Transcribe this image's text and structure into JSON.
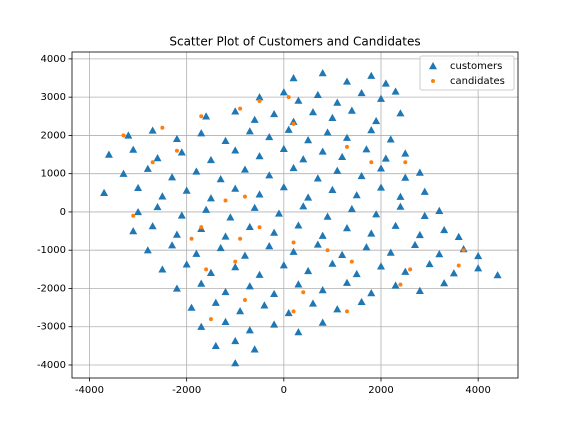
{
  "chart_data": {
    "type": "scatter",
    "title": "Scatter Plot of Customers and Candidates",
    "xlim": [
      -4360,
      4820
    ],
    "ylim": [
      -4340,
      4180
    ],
    "xticks": [
      -4000,
      -2000,
      0,
      2000,
      4000
    ],
    "yticks": [
      -4000,
      -3000,
      -2000,
      -1000,
      0,
      1000,
      2000,
      3000,
      4000
    ],
    "grid": true,
    "legend": "upper right",
    "series": [
      {
        "name": "customers",
        "color": "#1f77b4",
        "marker": "triangle",
        "x": [
          200,
          800,
          1300,
          1800,
          2100,
          -500,
          0,
          300,
          700,
          1100,
          1600,
          2000,
          2300,
          -1600,
          -1000,
          -600,
          -200,
          200,
          600,
          1000,
          1400,
          1900,
          2400,
          -3200,
          -2700,
          -2200,
          -1700,
          -1200,
          -700,
          -300,
          100,
          500,
          900,
          1300,
          1800,
          2200,
          -3600,
          -3100,
          -2600,
          -2100,
          -1500,
          -1000,
          -500,
          0,
          400,
          800,
          1200,
          1700,
          2100,
          2500,
          -3300,
          -2800,
          -2300,
          -1800,
          -1300,
          -800,
          -300,
          200,
          700,
          1100,
          1600,
          2000,
          2500,
          2800,
          -3700,
          -3000,
          -2500,
          -2000,
          -1500,
          -1000,
          -500,
          0,
          500,
          1000,
          1500,
          2000,
          2400,
          2900,
          -3000,
          -2600,
          -2100,
          -1600,
          -1100,
          -600,
          -100,
          400,
          900,
          1400,
          1900,
          2400,
          2900,
          3200,
          -3100,
          -2700,
          -2200,
          -1700,
          -1200,
          -700,
          -200,
          300,
          800,
          1300,
          1800,
          2300,
          2800,
          3300,
          3600,
          -2800,
          -2300,
          -1800,
          -1300,
          -800,
          -300,
          200,
          700,
          1200,
          1700,
          2200,
          2700,
          3200,
          3700,
          4000,
          -2500,
          -2000,
          -1500,
          -1000,
          -500,
          0,
          500,
          1000,
          1500,
          2000,
          2500,
          3000,
          3500,
          4000,
          4400,
          -2200,
          -1700,
          -1200,
          -700,
          -200,
          300,
          800,
          1300,
          1800,
          2300,
          2800,
          3300,
          -1900,
          -1400,
          -900,
          -400,
          100,
          600,
          1100,
          1600,
          -1700,
          -1200,
          -700,
          -200,
          300,
          800,
          -1400,
          -1000,
          -600,
          -1000
        ],
        "values": [
          3500,
          3630,
          3410,
          3560,
          3360,
          3000,
          3130,
          2910,
          3060,
          2860,
          3110,
          2960,
          3150,
          2500,
          2630,
          2410,
          2560,
          2360,
          2610,
          2460,
          2650,
          2380,
          2580,
          2000,
          2130,
          1910,
          2060,
          1860,
          2110,
          1960,
          2150,
          1880,
          2080,
          1940,
          2140,
          1900,
          1500,
          1630,
          1410,
          1560,
          1360,
          1610,
          1460,
          1650,
          1380,
          1580,
          1440,
          1640,
          1400,
          1530,
          1000,
          1130,
          910,
          1060,
          860,
          1110,
          960,
          1150,
          880,
          1080,
          940,
          1140,
          900,
          1030,
          500,
          630,
          410,
          560,
          360,
          610,
          460,
          650,
          380,
          580,
          440,
          640,
          400,
          530,
          0,
          130,
          -90,
          60,
          -140,
          110,
          -40,
          150,
          -120,
          80,
          -60,
          140,
          -100,
          30,
          -500,
          -370,
          -590,
          -440,
          -640,
          -390,
          -540,
          -350,
          -620,
          -420,
          -560,
          -360,
          -600,
          -470,
          -650,
          -1000,
          -870,
          -1090,
          -940,
          -1140,
          -890,
          -1040,
          -850,
          -1120,
          -920,
          -1060,
          -860,
          -1100,
          -970,
          -1150,
          -1500,
          -1370,
          -1590,
          -1440,
          -1640,
          -1390,
          -1540,
          -1350,
          -1620,
          -1420,
          -1560,
          -1360,
          -1600,
          -1470,
          -1650,
          -2000,
          -1870,
          -2090,
          -1940,
          -2140,
          -1890,
          -2040,
          -1850,
          -2120,
          -1920,
          -2060,
          -1860,
          -2500,
          -2370,
          -2590,
          -2440,
          -2640,
          -2390,
          -2540,
          -2350,
          -3000,
          -2870,
          -3090,
          -2940,
          -3140,
          -2890,
          -3500,
          -3370,
          -3590,
          -3950
        ]
      },
      {
        "name": "candidates",
        "color": "#ff7f0e",
        "marker": "circle",
        "x": [
          -3300,
          -2500,
          -2700,
          -2200,
          -1700,
          -900,
          -500,
          200,
          100,
          1300,
          1800,
          2500,
          -1200,
          -800,
          -1700,
          -3100,
          -1900,
          -900,
          -500,
          200,
          900,
          1400,
          2600,
          -1600,
          -1000,
          -800,
          400,
          1300,
          2400,
          3700,
          3600,
          200,
          -1500
        ],
        "values": [
          2000,
          2200,
          1300,
          1600,
          2500,
          2700,
          2900,
          2300,
          3000,
          1700,
          1300,
          1300,
          300,
          400,
          -400,
          -100,
          -700,
          -700,
          -400,
          -800,
          -1000,
          -1300,
          -1500,
          -1500,
          -1300,
          -2300,
          -2100,
          -2600,
          -1900,
          -1000,
          -1400,
          -2600,
          -2800
        ]
      }
    ]
  }
}
